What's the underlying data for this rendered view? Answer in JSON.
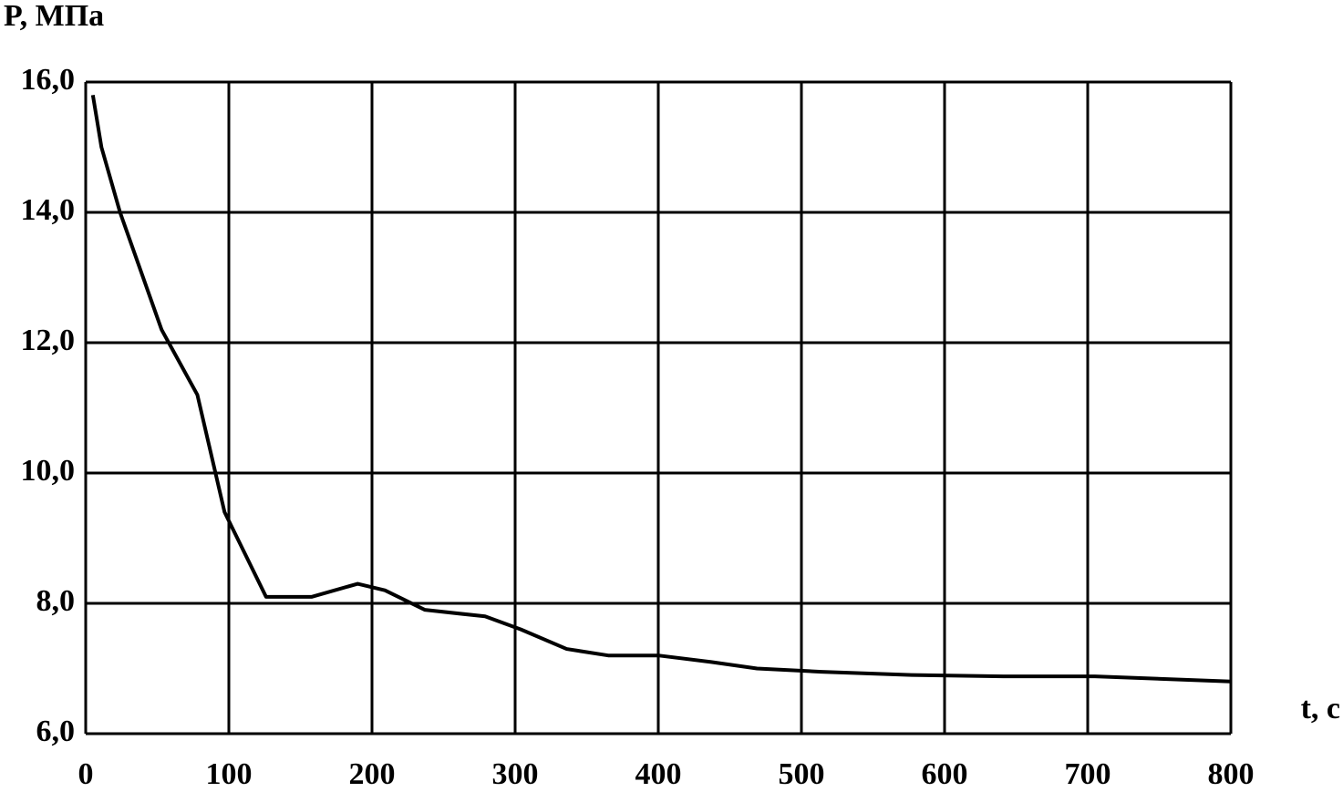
{
  "chart_data": {
    "type": "line",
    "y_label": "P, МПа",
    "x_label": "t, c",
    "x": [
      5,
      11,
      24,
      53,
      78,
      97,
      126,
      158,
      190,
      209,
      237,
      279,
      304,
      336,
      365,
      400,
      437,
      469,
      514,
      577,
      641,
      705,
      800
    ],
    "series": [
      {
        "color": "#000000",
        "values": [
          15.8,
          15.0,
          14.0,
          12.2,
          11.2,
          9.4,
          8.1,
          8.1,
          8.3,
          8.2,
          7.9,
          7.8,
          7.6,
          7.3,
          7.2,
          7.2,
          7.1,
          7.0,
          6.95,
          6.9,
          6.88,
          6.88,
          6.8
        ]
      }
    ],
    "xlim": [
      0,
      800
    ],
    "xticks": [
      0,
      100,
      200,
      300,
      400,
      500,
      600,
      700,
      800
    ],
    "ylim": [
      6,
      16
    ],
    "yticks": [
      {
        "value": 6,
        "label": "6,0"
      },
      {
        "value": 8,
        "label": "8,0"
      },
      {
        "value": 10,
        "label": "10,0"
      },
      {
        "value": 12,
        "label": "12,0"
      },
      {
        "value": 14,
        "label": "14,0"
      },
      {
        "value": 16,
        "label": "16,0"
      }
    ],
    "grid": true
  }
}
